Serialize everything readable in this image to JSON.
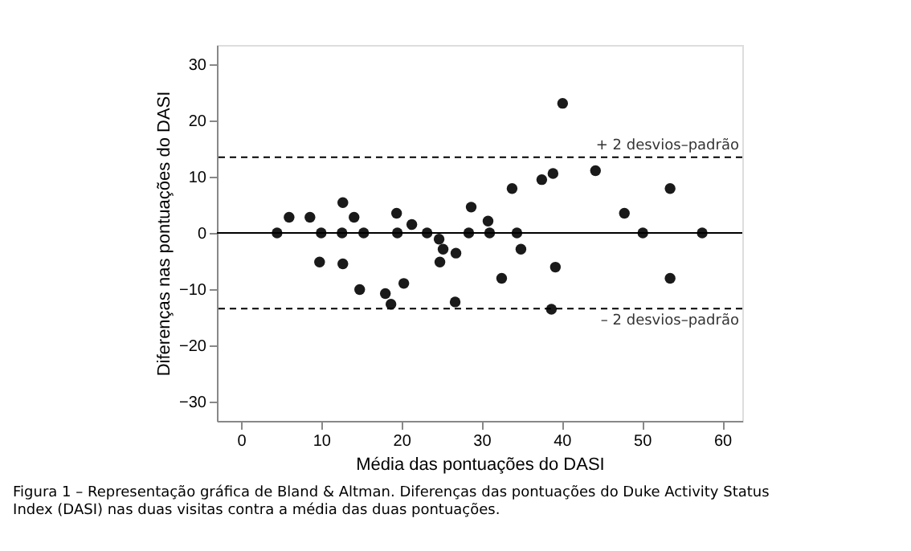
{
  "chart_data": {
    "type": "scatter",
    "xlabel": "Média das pontuações do DASI",
    "ylabel": "Diferenças nas pontuações do DASI",
    "x": [
      4.5,
      6,
      8.6,
      10,
      9.8,
      12.7,
      12.6,
      12.7,
      14.1,
      15.3,
      14.8,
      18,
      18.7,
      19.4,
      19.5,
      20.3,
      21.3,
      23.2,
      24.7,
      25.2,
      24.8,
      26.8,
      26.7,
      28.4,
      28.7,
      30.8,
      31,
      32.5,
      33.8,
      34.4,
      34.9,
      37.5,
      38.9,
      38.7,
      39.2,
      40.1,
      44.2,
      47.8,
      50.1,
      53.5,
      53.5,
      57.5
    ],
    "series": [
      {
        "color": "#1a1a1a",
        "values": [
          0,
          2.8,
          2.8,
          0,
          -5.2,
          5.4,
          0,
          -5.5,
          2.8,
          0,
          -10.1,
          -10.8,
          -12.7,
          3.5,
          0,
          -9,
          1.5,
          0,
          -1.1,
          -2.9,
          -5.2,
          -3.6,
          -12.3,
          0,
          4.6,
          2.1,
          0,
          -8.1,
          7.9,
          0,
          -2.9,
          9.5,
          10.6,
          -13.6,
          -6.1,
          23.1,
          11.1,
          3.5,
          0,
          7.9,
          -8.1,
          0
        ]
      }
    ],
    "marker": "circle",
    "xlim": [
      -3,
      62.5
    ],
    "ylim": [
      -33.5,
      33.5
    ],
    "xticks": [
      0,
      10,
      20,
      30,
      40,
      50,
      60
    ],
    "yticks": [
      -30,
      -20,
      -10,
      0,
      10,
      20,
      30
    ],
    "grid": false,
    "legend": false,
    "ref_lines": [
      {
        "axis": "y",
        "value": 13.5,
        "label": "+ 2 desvios–padrão",
        "line_style": "dashed"
      },
      {
        "axis": "y",
        "value": 0,
        "label": null,
        "line_style": "solid"
      },
      {
        "axis": "y",
        "value": -13.5,
        "label": "– 2 desvios–padrão",
        "line_style": "dashed"
      }
    ],
    "annotations": [
      "Figura 1 – Representação gráfica de Bland & Altman. Diferenças das pontuações do Duke Activity Status Index (DASI) nas duas visitas contra a média das duas pontuações."
    ]
  }
}
